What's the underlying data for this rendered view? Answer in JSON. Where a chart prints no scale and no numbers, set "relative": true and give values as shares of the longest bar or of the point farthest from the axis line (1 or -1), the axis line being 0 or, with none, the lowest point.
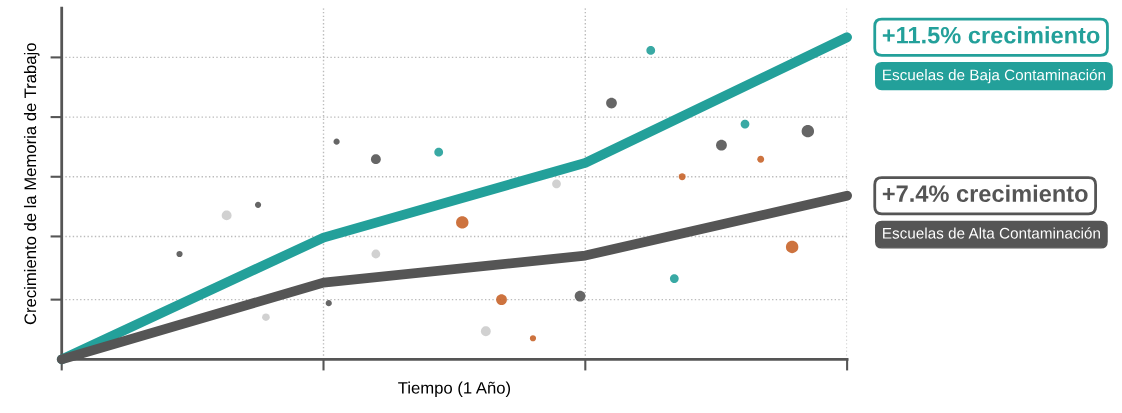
{
  "chart_data": {
    "type": "line",
    "relative": true,
    "xlabel": "Tiempo (1 Año)",
    "ylabel": "Crecimiento de la Memoria de Trabajo",
    "categories": [
      null,
      null,
      null,
      null
    ],
    "tick_labels": false,
    "grid": true,
    "marker": "none",
    "line_style": "solid",
    "series": [
      {
        "name": "Escuelas de Baja Contaminación",
        "color": "#23a09a",
        "values": [
          0,
          0.378,
          0.61,
          1
        ]
      },
      {
        "name": "Escuelas de Alta Contaminación",
        "color": "#555555",
        "values": [
          0,
          0.238,
          0.322,
          0.508
        ]
      }
    ],
    "annotations": [
      "+11.5% crecimiento",
      "+7.4% crecimiento"
    ]
  }
}
